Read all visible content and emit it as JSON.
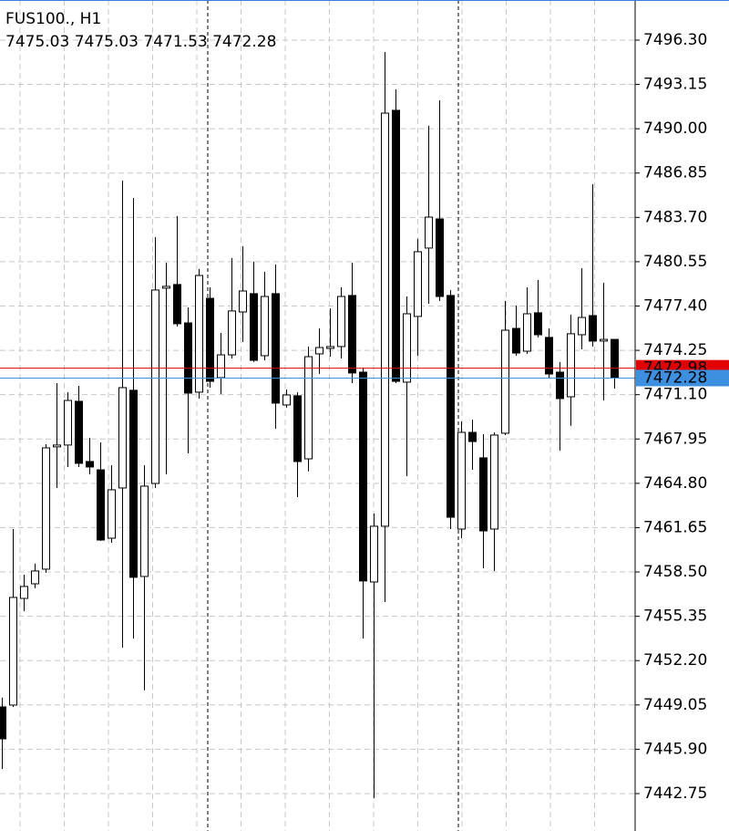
{
  "chart_data": {
    "type": "candlestick",
    "title": "FUS100., H1",
    "subtitle": "7475.03 7475.03 7471.53 7472.28",
    "up_color": "#ffffff",
    "down_color": "#000000",
    "grid": true,
    "ylim": [
      7440.09,
      7499.15
    ],
    "yticks": [
      {
        "value": 7496.3,
        "label": "7496.30"
      },
      {
        "value": 7493.15,
        "label": "7493.15"
      },
      {
        "value": 7490.0,
        "label": "7490.00"
      },
      {
        "value": 7486.85,
        "label": "7486.85"
      },
      {
        "value": 7483.7,
        "label": "7483.70"
      },
      {
        "value": 7480.55,
        "label": "7480.55"
      },
      {
        "value": 7477.4,
        "label": "7477.40"
      },
      {
        "value": 7474.25,
        "label": "7474.25"
      },
      {
        "value": 7471.1,
        "label": "7471.10"
      },
      {
        "value": 7467.95,
        "label": "7467.95"
      },
      {
        "value": 7464.8,
        "label": "7464.80"
      },
      {
        "value": 7461.65,
        "label": "7461.65"
      },
      {
        "value": 7458.5,
        "label": "7458.50"
      },
      {
        "value": 7455.35,
        "label": "7455.35"
      },
      {
        "value": 7452.2,
        "label": "7452.20"
      },
      {
        "value": 7449.05,
        "label": "7449.05"
      },
      {
        "value": 7445.9,
        "label": "7445.90"
      },
      {
        "value": 7442.75,
        "label": "7442.75"
      }
    ],
    "ask_line": {
      "value": 7472.98,
      "label": "7472.98",
      "color": "#e00000"
    },
    "bid_line": {
      "value": 7472.28,
      "label": "7472.28",
      "color": "#3d8fe0"
    },
    "open": [
      7448.91,
      7449.04,
      7456.62,
      7457.66,
      7458.7,
      7467.39,
      7467.52,
      7470.63,
      7466.35,
      7465.76,
      7460.9,
      7464.47,
      7471.41,
      7458.18,
      7464.79,
      7478.67,
      7478.93,
      7476.2,
      7471.28,
      7477.95,
      7472.31,
      7473.93,
      7476.98,
      7478.28,
      7473.87,
      7478.28,
      7470.37,
      7471.02,
      7466.54,
      7474.0,
      7474.39,
      7474.52,
      7478.15,
      7472.7,
      7457.79,
      7461.75,
      7491.31,
      7471.99,
      7476.66,
      7481.52,
      7483.59,
      7478.15,
      7461.55,
      7468.42,
      7466.61,
      7461.55,
      7468.36,
      7475.81,
      7474.19,
      7476.92,
      7475.17,
      7472.7,
      7470.95,
      7475.36,
      7476.72,
      7474.91,
      7475.03
    ],
    "high": [
      7449.56,
      7461.55,
      7458.31,
      7459.09,
      7467.58,
      7471.92,
      7471.28,
      7471.73,
      7468.03,
      7467.71,
      7466.09,
      7486.32,
      7485.08,
      7466.09,
      7482.3,
      7480.48,
      7483.79,
      7477.3,
      7480.03,
      7478.73,
      7475.49,
      7480.81,
      7481.65,
      7480.55,
      7479.83,
      7480.35,
      7471.47,
      7471.28,
      7474.52,
      7475.81,
      7477.24,
      7478.73,
      7480.48,
      7473.03,
      7462.65,
      7495.46,
      7492.8,
      7478.08,
      7482.17,
      7490.21,
      7492.02,
      7478.54,
      7469.2,
      7469.33,
      7468.29,
      7468.42,
      7477.76,
      7477.43,
      7478.73,
      7479.25,
      7475.81,
      7473.42,
      7476.79,
      7480.09,
      7486.06,
      7479.06,
      7475.03
    ],
    "low": [
      7444.5,
      7448.91,
      7455.72,
      7457.34,
      7458.44,
      7464.47,
      7465.96,
      7465.96,
      7465.44,
      7460.71,
      7460.58,
      7453.12,
      7453.77,
      7450.08,
      7464.47,
      7465.44,
      7475.94,
      7466.93,
      7470.82,
      7471.6,
      7471.15,
      7473.67,
      7474.84,
      7473.42,
      7473.54,
      7468.68,
      7470.17,
      7463.82,
      7465.64,
      7472.57,
      7473.8,
      7473.67,
      7471.92,
      7453.77,
      7442.43,
      7456.36,
      7471.92,
      7465.31,
      7473.87,
      7477.56,
      7477.76,
      7461.55,
      7460.9,
      7465.76,
      7458.76,
      7458.57,
      7468.23,
      7473.87,
      7474.0,
      7475.17,
      7472.31,
      7467.13,
      7468.88,
      7474.32,
      7474.52,
      7470.69,
      7471.53
    ],
    "close": [
      7446.64,
      7456.69,
      7457.47,
      7458.57,
      7467.32,
      7467.52,
      7470.69,
      7466.22,
      7465.96,
      7460.77,
      7464.34,
      7471.6,
      7458.12,
      7464.6,
      7478.54,
      7478.8,
      7476.14,
      7471.21,
      7479.57,
      7472.05,
      7473.93,
      7477.05,
      7478.47,
      7473.54,
      7478.08,
      7470.5,
      7471.08,
      7466.35,
      7473.8,
      7474.45,
      7474.52,
      7478.08,
      7472.64,
      7457.86,
      7461.75,
      7491.11,
      7472.05,
      7476.85,
      7481.26,
      7483.72,
      7478.08,
      7462.39,
      7468.42,
      7467.77,
      7461.42,
      7468.23,
      7475.68,
      7474.06,
      7476.85,
      7475.36,
      7472.57,
      7470.82,
      7475.43,
      7476.59,
      7474.91,
      7475.03,
      7472.28
    ]
  }
}
